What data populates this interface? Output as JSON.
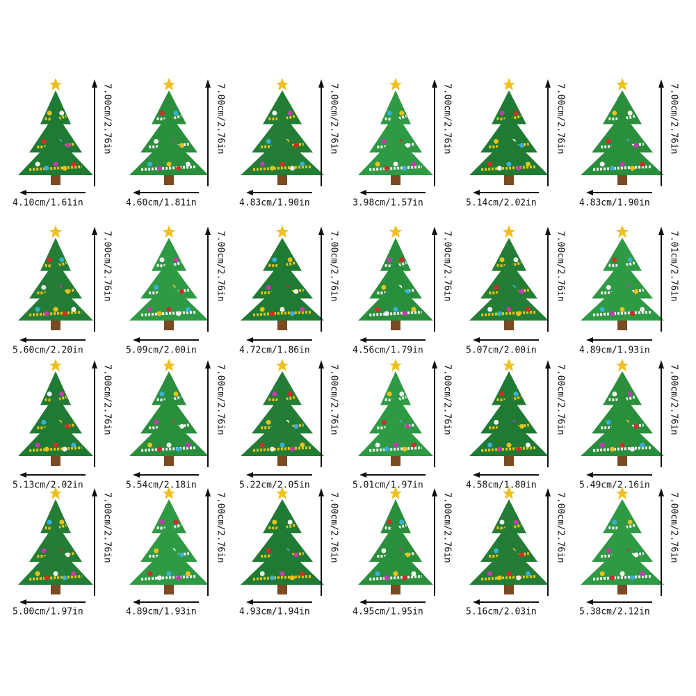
{
  "items": [
    {
      "width": "4.10cm/1.61in",
      "height": "7.00cm/2.76in"
    },
    {
      "width": "4.60cm/1.81in",
      "height": "7.00cm/2.76in"
    },
    {
      "width": "4.83cm/1.90in",
      "height": "7.00cm/2.76in"
    },
    {
      "width": "3.98cm/1.57in",
      "height": "7.00cm/2.76in"
    },
    {
      "width": "5.14cm/2.02in",
      "height": "7.00cm/2.76in"
    },
    {
      "width": "4.83cm/1.90in",
      "height": "7.00cm/2.76in"
    },
    {
      "width": "5.60cm/2.20in",
      "height": "7.00cm/2.76in"
    },
    {
      "width": "5.09cm/2.00in",
      "height": "7.00cm/2.76in"
    },
    {
      "width": "4.72cm/1.86in",
      "height": "7.00cm/2.76in"
    },
    {
      "width": "4.56cm/1.79in",
      "height": "7.00cm/2.76in"
    },
    {
      "width": "5.07cm/2.00in",
      "height": "7.00cm/2.76in"
    },
    {
      "width": "4.89cm/1.93in",
      "height": "7.01cm/2.76in"
    },
    {
      "width": "5.13cm/2.02in",
      "height": "7.00cm/2.76in"
    },
    {
      "width": "5.54cm/2.18in",
      "height": "7.00cm/2.76in"
    },
    {
      "width": "5.22cm/2.05in",
      "height": "7.00cm/2.76in"
    },
    {
      "width": "5.01cm/1.97in",
      "height": "7.00cm/2.76in"
    },
    {
      "width": "4.58cm/1.80in",
      "height": "7.00cm/2.76in"
    },
    {
      "width": "5.49cm/2.16in",
      "height": "7.00cm/2.76in"
    },
    {
      "width": "5.00cm/1.97in",
      "height": "7.00cm/2.76in"
    },
    {
      "width": "4.89cm/1.93in",
      "height": "7.00cm/2.76in"
    },
    {
      "width": "4.93cm/1.94in",
      "height": "7.00cm/2.76in"
    },
    {
      "width": "4.95cm/1.95in",
      "height": "7.00cm/2.76in"
    },
    {
      "width": "5.16cm/2.03in",
      "height": "7.00cm/2.76in"
    },
    {
      "width": "5.38cm/2.12in",
      "height": "7.00cm/2.76in"
    }
  ]
}
